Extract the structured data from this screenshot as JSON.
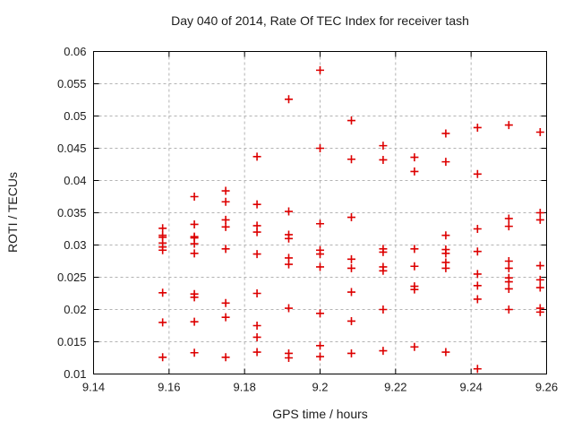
{
  "chart_data": {
    "type": "scatter",
    "title": "Day 040 of 2014, Rate Of TEC Index for receiver tash",
    "xlabel": "GPS time / hours",
    "ylabel": "ROTI / TECUs",
    "xlim": [
      9.14,
      9.26
    ],
    "ylim": [
      0.01,
      0.06
    ],
    "xticks": [
      9.14,
      9.16,
      9.18,
      9.2,
      9.22,
      9.24,
      9.26
    ],
    "xtick_labels": [
      "9.14",
      "9.16",
      "9.18",
      "9.2",
      "9.22",
      "9.24",
      "9.26"
    ],
    "yticks": [
      0.01,
      0.015,
      0.02,
      0.025,
      0.03,
      0.035,
      0.04,
      0.045,
      0.05,
      0.055,
      0.06
    ],
    "ytick_labels": [
      "0.01",
      "0.015",
      "0.02",
      "0.025",
      "0.03",
      "0.035",
      "0.04",
      "0.045",
      "0.05",
      "0.055",
      "0.06"
    ],
    "grid": true,
    "legend_position": "none",
    "marker": "plus",
    "marker_color": "#dd0000",
    "frame_color": "#000000",
    "grid_color": "#b3b3b3",
    "text_color": "#1c1c1c",
    "series": [
      {
        "name": "ROTI",
        "points": [
          [
            9.1583,
            0.0326
          ],
          [
            9.1583,
            0.0315
          ],
          [
            9.1583,
            0.0312
          ],
          [
            9.1583,
            0.0303
          ],
          [
            9.1583,
            0.0297
          ],
          [
            9.1583,
            0.0292
          ],
          [
            9.1583,
            0.0226
          ],
          [
            9.1583,
            0.018
          ],
          [
            9.1583,
            0.0126
          ],
          [
            9.1667,
            0.0375
          ],
          [
            9.1667,
            0.0332
          ],
          [
            9.1667,
            0.0313
          ],
          [
            9.1667,
            0.0311
          ],
          [
            9.1667,
            0.0302
          ],
          [
            9.1667,
            0.0287
          ],
          [
            9.1667,
            0.0224
          ],
          [
            9.1667,
            0.0219
          ],
          [
            9.1667,
            0.0181
          ],
          [
            9.1667,
            0.0133
          ],
          [
            9.175,
            0.0384
          ],
          [
            9.175,
            0.0367
          ],
          [
            9.175,
            0.0339
          ],
          [
            9.175,
            0.0328
          ],
          [
            9.175,
            0.0294
          ],
          [
            9.175,
            0.021
          ],
          [
            9.175,
            0.0188
          ],
          [
            9.175,
            0.0126
          ],
          [
            9.1833,
            0.0437
          ],
          [
            9.1833,
            0.0363
          ],
          [
            9.1833,
            0.033
          ],
          [
            9.1833,
            0.032
          ],
          [
            9.1833,
            0.0286
          ],
          [
            9.1833,
            0.0225
          ],
          [
            9.1833,
            0.0175
          ],
          [
            9.1833,
            0.0157
          ],
          [
            9.1833,
            0.0134
          ],
          [
            9.1917,
            0.0526
          ],
          [
            9.1917,
            0.0352
          ],
          [
            9.1917,
            0.0316
          ],
          [
            9.1917,
            0.031
          ],
          [
            9.1917,
            0.028
          ],
          [
            9.1917,
            0.027
          ],
          [
            9.1917,
            0.0202
          ],
          [
            9.1917,
            0.0132
          ],
          [
            9.1917,
            0.0125
          ],
          [
            9.2,
            0.0571
          ],
          [
            9.2,
            0.045
          ],
          [
            9.2,
            0.0333
          ],
          [
            9.2,
            0.0292
          ],
          [
            9.2,
            0.0286
          ],
          [
            9.2,
            0.0266
          ],
          [
            9.2,
            0.0194
          ],
          [
            9.2,
            0.0144
          ],
          [
            9.2,
            0.0127
          ],
          [
            9.2083,
            0.0493
          ],
          [
            9.2083,
            0.0433
          ],
          [
            9.2083,
            0.0343
          ],
          [
            9.2083,
            0.0278
          ],
          [
            9.2083,
            0.0264
          ],
          [
            9.2083,
            0.0227
          ],
          [
            9.2083,
            0.0182
          ],
          [
            9.2083,
            0.0132
          ],
          [
            9.2167,
            0.0454
          ],
          [
            9.2167,
            0.0432
          ],
          [
            9.2167,
            0.0294
          ],
          [
            9.2167,
            0.0289
          ],
          [
            9.2167,
            0.0266
          ],
          [
            9.2167,
            0.026
          ],
          [
            9.2167,
            0.02
          ],
          [
            9.2167,
            0.0136
          ],
          [
            9.225,
            0.0436
          ],
          [
            9.225,
            0.0414
          ],
          [
            9.225,
            0.0294
          ],
          [
            9.225,
            0.0267
          ],
          [
            9.225,
            0.0236
          ],
          [
            9.225,
            0.0231
          ],
          [
            9.225,
            0.0142
          ],
          [
            9.2333,
            0.0473
          ],
          [
            9.2333,
            0.0429
          ],
          [
            9.2333,
            0.0315
          ],
          [
            9.2333,
            0.0293
          ],
          [
            9.2333,
            0.0287
          ],
          [
            9.2333,
            0.0273
          ],
          [
            9.2333,
            0.0264
          ],
          [
            9.2333,
            0.0134
          ],
          [
            9.2417,
            0.0482
          ],
          [
            9.2417,
            0.041
          ],
          [
            9.2417,
            0.0325
          ],
          [
            9.2417,
            0.029
          ],
          [
            9.2417,
            0.0255
          ],
          [
            9.2417,
            0.0237
          ],
          [
            9.2417,
            0.0216
          ],
          [
            9.2417,
            0.0108
          ],
          [
            9.25,
            0.0486
          ],
          [
            9.25,
            0.0341
          ],
          [
            9.25,
            0.0329
          ],
          [
            9.25,
            0.0275
          ],
          [
            9.25,
            0.0264
          ],
          [
            9.25,
            0.0249
          ],
          [
            9.25,
            0.0243
          ],
          [
            9.25,
            0.0232
          ],
          [
            9.25,
            0.02
          ],
          [
            9.2583,
            0.0475
          ],
          [
            9.2583,
            0.035
          ],
          [
            9.2583,
            0.0339
          ],
          [
            9.2583,
            0.0268
          ],
          [
            9.2583,
            0.0246
          ],
          [
            9.2583,
            0.0234
          ],
          [
            9.2583,
            0.0202
          ],
          [
            9.2583,
            0.0196
          ]
        ]
      }
    ]
  }
}
